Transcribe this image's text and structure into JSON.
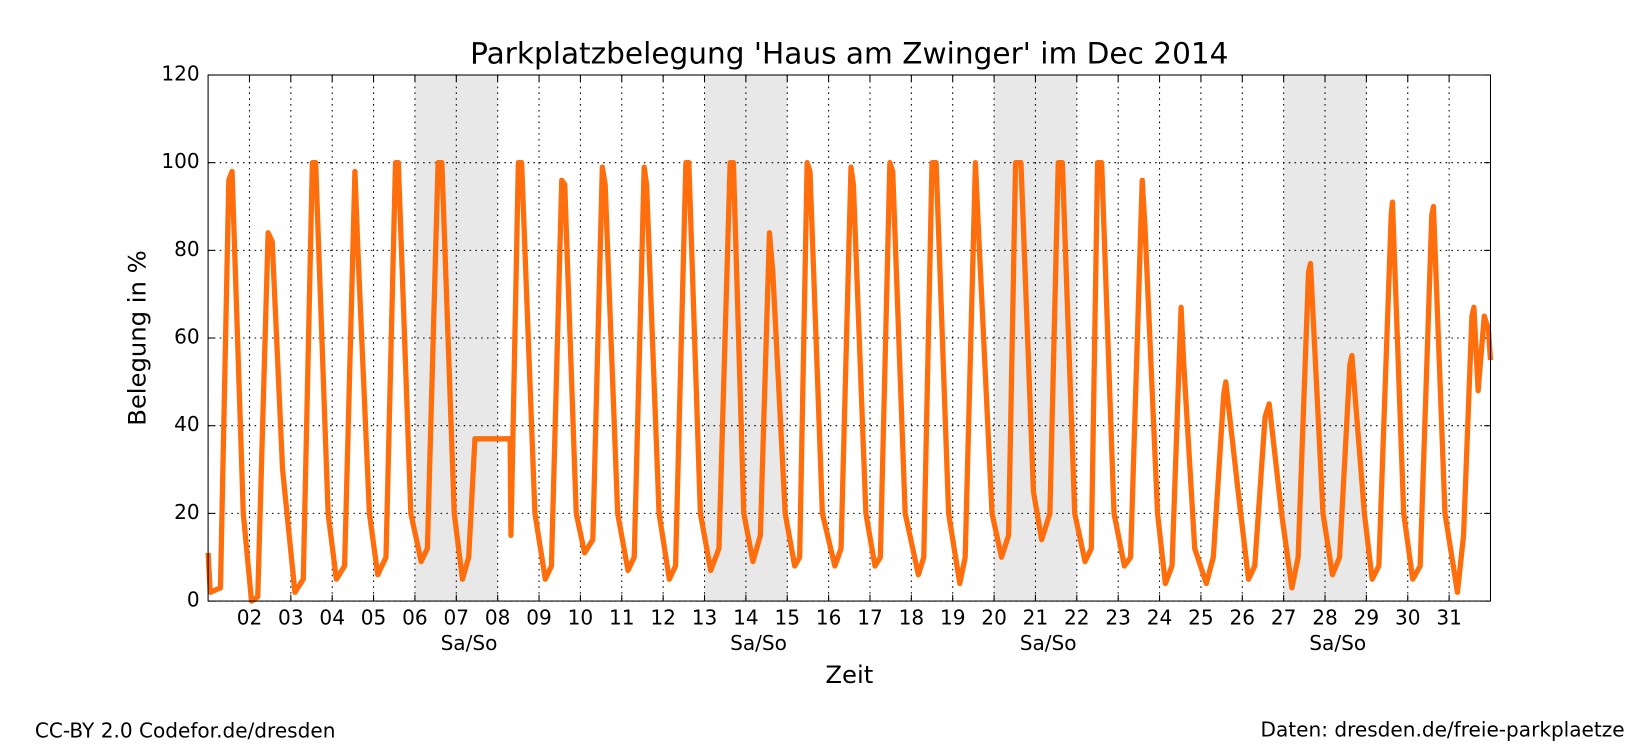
{
  "chart_data": {
    "type": "line",
    "title": "Parkplatzbelegung 'Haus am Zwinger' im Dec 2014",
    "x_label": "Zeit",
    "y_label": "Belegung in %",
    "color": "#ff6e0c",
    "grid": true,
    "weekend_label": "Sa/So",
    "weekend_color": "#e8e8e8",
    "weekends": [
      [
        6,
        8
      ],
      [
        13,
        15
      ],
      [
        20,
        22
      ],
      [
        27,
        29
      ]
    ],
    "xlim": [
      1,
      32
    ],
    "ylim": [
      0,
      120
    ],
    "yticks": [
      0,
      20,
      40,
      60,
      80,
      100,
      120
    ],
    "xticks": [
      {
        "value": 2,
        "label": "02"
      },
      {
        "value": 3,
        "label": "03"
      },
      {
        "value": 4,
        "label": "04"
      },
      {
        "value": 5,
        "label": "05"
      },
      {
        "value": 6,
        "label": "06"
      },
      {
        "value": 7,
        "label": "07"
      },
      {
        "value": 8,
        "label": "08"
      },
      {
        "value": 9,
        "label": "09"
      },
      {
        "value": 10,
        "label": "10"
      },
      {
        "value": 11,
        "label": "11"
      },
      {
        "value": 12,
        "label": "12"
      },
      {
        "value": 13,
        "label": "13"
      },
      {
        "value": 14,
        "label": "14"
      },
      {
        "value": 15,
        "label": "15"
      },
      {
        "value": 16,
        "label": "16"
      },
      {
        "value": 17,
        "label": "17"
      },
      {
        "value": 18,
        "label": "18"
      },
      {
        "value": 19,
        "label": "19"
      },
      {
        "value": 20,
        "label": "20"
      },
      {
        "value": 21,
        "label": "21"
      },
      {
        "value": 22,
        "label": "22"
      },
      {
        "value": 23,
        "label": "23"
      },
      {
        "value": 24,
        "label": "24"
      },
      {
        "value": 25,
        "label": "25"
      },
      {
        "value": 26,
        "label": "26"
      },
      {
        "value": 27,
        "label": "27"
      },
      {
        "value": 28,
        "label": "28"
      },
      {
        "value": 29,
        "label": "29"
      },
      {
        "value": 30,
        "label": "30"
      },
      {
        "value": 31,
        "label": "31"
      }
    ],
    "x": [
      1.0,
      1.05,
      1.3,
      1.5,
      1.58,
      1.85,
      2.05,
      2.2,
      2.45,
      2.55,
      2.8,
      3.1,
      3.3,
      3.52,
      3.6,
      3.9,
      4.1,
      4.3,
      4.55,
      4.62,
      4.9,
      5.1,
      5.3,
      5.53,
      5.6,
      5.9,
      6.15,
      6.3,
      6.56,
      6.65,
      6.95,
      7.15,
      7.3,
      7.45,
      8.3,
      8.32,
      8.5,
      8.58,
      8.9,
      9.15,
      9.3,
      9.55,
      9.62,
      9.9,
      10.1,
      10.3,
      10.53,
      10.6,
      10.9,
      11.15,
      11.3,
      11.54,
      11.6,
      11.9,
      12.15,
      12.3,
      12.55,
      12.62,
      12.9,
      13.15,
      13.35,
      13.62,
      13.7,
      13.95,
      14.17,
      14.35,
      14.57,
      14.65,
      14.95,
      15.18,
      15.3,
      15.48,
      15.55,
      15.85,
      16.15,
      16.3,
      16.54,
      16.6,
      16.9,
      17.12,
      17.25,
      17.48,
      17.55,
      17.85,
      18.17,
      18.3,
      18.5,
      18.6,
      18.9,
      19.17,
      19.3,
      19.55,
      19.62,
      19.95,
      20.18,
      20.35,
      20.52,
      20.65,
      20.95,
      21.15,
      21.35,
      21.55,
      21.65,
      21.95,
      22.2,
      22.35,
      22.5,
      22.6,
      22.9,
      23.15,
      23.3,
      23.58,
      23.65,
      23.95,
      24.14,
      24.3,
      24.52,
      24.58,
      24.85,
      25.13,
      25.3,
      25.55,
      25.6,
      25.9,
      26.15,
      26.3,
      26.55,
      26.65,
      26.95,
      27.2,
      27.35,
      27.6,
      27.65,
      27.95,
      28.18,
      28.35,
      28.6,
      28.65,
      28.95,
      29.14,
      29.3,
      29.6,
      29.63,
      29.9,
      30.12,
      30.3,
      30.58,
      30.62,
      30.9,
      31.2,
      31.35,
      31.55,
      31.6,
      31.7,
      31.85,
      31.95,
      32.0
    ],
    "values": [
      11,
      2,
      3,
      96,
      98,
      20,
      0,
      1,
      84,
      82,
      30,
      2,
      5,
      100,
      100,
      20,
      5,
      8,
      98,
      80,
      20,
      6,
      10,
      100,
      100,
      20,
      9,
      12,
      100,
      100,
      20,
      5,
      10,
      37,
      37,
      15,
      100,
      100,
      20,
      5,
      8,
      96,
      95,
      20,
      11,
      14,
      99,
      95,
      20,
      7,
      10,
      99,
      95,
      20,
      5,
      8,
      100,
      100,
      20,
      7,
      12,
      100,
      100,
      20,
      9,
      15,
      84,
      75,
      20,
      8,
      10,
      100,
      98,
      20,
      8,
      12,
      99,
      95,
      20,
      8,
      10,
      100,
      98,
      20,
      6,
      10,
      100,
      100,
      20,
      4,
      10,
      100,
      85,
      20,
      10,
      15,
      100,
      100,
      25,
      14,
      20,
      100,
      100,
      20,
      9,
      12,
      100,
      100,
      20,
      8,
      10,
      96,
      85,
      20,
      4,
      8,
      67,
      55,
      12,
      4,
      10,
      47,
      50,
      25,
      5,
      8,
      42,
      45,
      20,
      3,
      10,
      75,
      77,
      20,
      6,
      10,
      54,
      56,
      20,
      5,
      8,
      88,
      91,
      20,
      5,
      8,
      88,
      90,
      20,
      2,
      15,
      65,
      67,
      48,
      65,
      62,
      55
    ],
    "footer_left": "CC-BY 2.0 Codefor.de/dresden",
    "footer_right": "Daten: dresden.de/freie-parkplaetze"
  }
}
